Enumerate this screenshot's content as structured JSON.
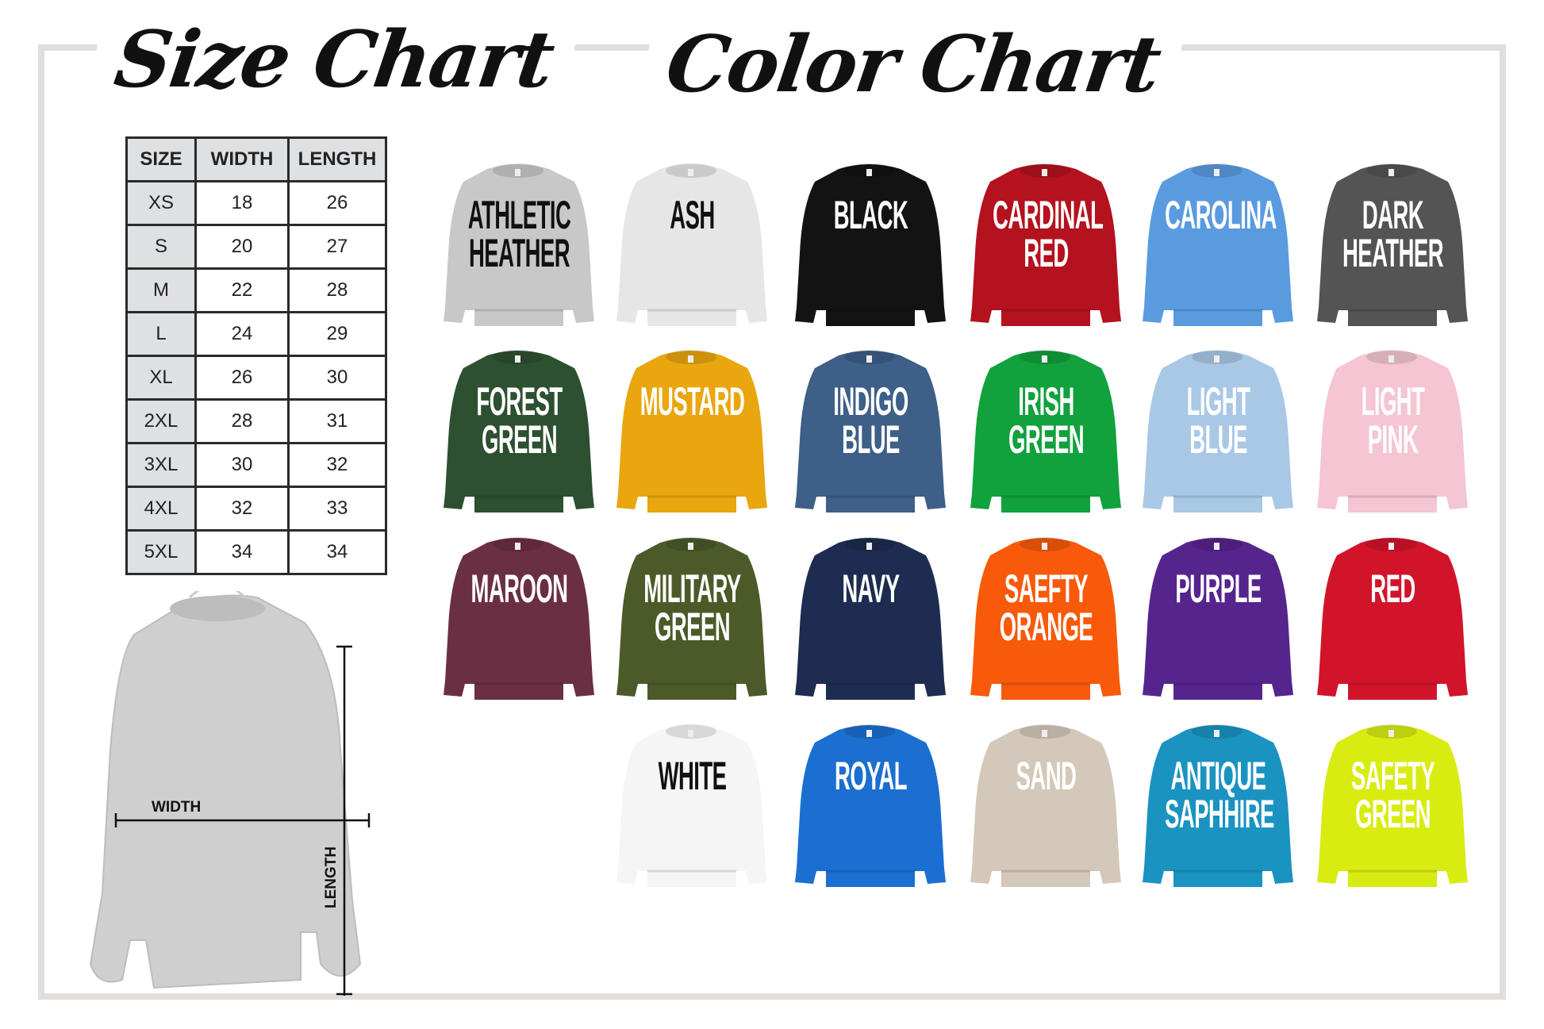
{
  "size_chart": {
    "title": "Size Chart",
    "headers": [
      "SIZE",
      "WIDTH",
      "LENGTH"
    ],
    "rows": [
      [
        "XS",
        "18",
        "26"
      ],
      [
        "S",
        "20",
        "27"
      ],
      [
        "M",
        "22",
        "28"
      ],
      [
        "L",
        "24",
        "29"
      ],
      [
        "XL",
        "26",
        "30"
      ],
      [
        "2XL",
        "28",
        "31"
      ],
      [
        "3XL",
        "30",
        "32"
      ],
      [
        "4XL",
        "32",
        "33"
      ],
      [
        "5XL",
        "34",
        "34"
      ]
    ],
    "diagram": {
      "width_label": "WIDTH",
      "length_label": "LENGTH",
      "sweater_color": "#cfcfcf"
    }
  },
  "color_chart": {
    "title": "Color Chart",
    "colors": [
      {
        "name": "ATHLETIC HEATHER",
        "color": "#c8c8c8",
        "text_color": "#111111"
      },
      {
        "name": "ASH",
        "color": "#e6e6e6",
        "text_color": "#111111"
      },
      {
        "name": "BLACK",
        "color": "#131313",
        "text_color": "#ffffff"
      },
      {
        "name": "CARDINAL RED",
        "color": "#b3121e",
        "text_color": "#ffffff"
      },
      {
        "name": "CAROLINA",
        "color": "#5a9be0",
        "text_color": "#ffffff"
      },
      {
        "name": "DARK HEATHER",
        "color": "#545454",
        "text_color": "#ffffff"
      },
      {
        "name": "FOREST GREEN",
        "color": "#2d5030",
        "text_color": "#ffffff"
      },
      {
        "name": "MUSTARD",
        "color": "#e9a60f",
        "text_color": "#ffffff"
      },
      {
        "name": "INDIGO BLUE",
        "color": "#3d5f88",
        "text_color": "#ffffff"
      },
      {
        "name": "IRISH GREEN",
        "color": "#11a13d",
        "text_color": "#ffffff"
      },
      {
        "name": "LIGHT BLUE",
        "color": "#a9c8e6",
        "text_color": "#ffffff"
      },
      {
        "name": "LIGHT PINK",
        "color": "#f4c5d3",
        "text_color": "#ffffff"
      },
      {
        "name": "MAROON",
        "color": "#6b2f44",
        "text_color": "#ffffff"
      },
      {
        "name": "MILITARY GREEN",
        "color": "#4c5a29",
        "text_color": "#ffffff"
      },
      {
        "name": "NAVY",
        "color": "#1d2c50",
        "text_color": "#ffffff"
      },
      {
        "name": "SAEFTY ORANGE",
        "color": "#f75a0b",
        "text_color": "#ffffff"
      },
      {
        "name": "PURPLE",
        "color": "#56248d",
        "text_color": "#ffffff"
      },
      {
        "name": "RED",
        "color": "#d2142b",
        "text_color": "#ffffff"
      },
      {
        "name": "WHITE",
        "color": "#f5f5f5",
        "text_color": "#111111"
      },
      {
        "name": "ROYAL",
        "color": "#1b6fd0",
        "text_color": "#ffffff"
      },
      {
        "name": "SAND",
        "color": "#d3c8b9",
        "text_color": "#ffffff"
      },
      {
        "name": "ANTIQUE SAPHHIRE",
        "color": "#1a93c1",
        "text_color": "#ffffff"
      },
      {
        "name": "SAFETY GREEN",
        "color": "#d8ec12",
        "text_color": "#ffffff"
      }
    ]
  }
}
